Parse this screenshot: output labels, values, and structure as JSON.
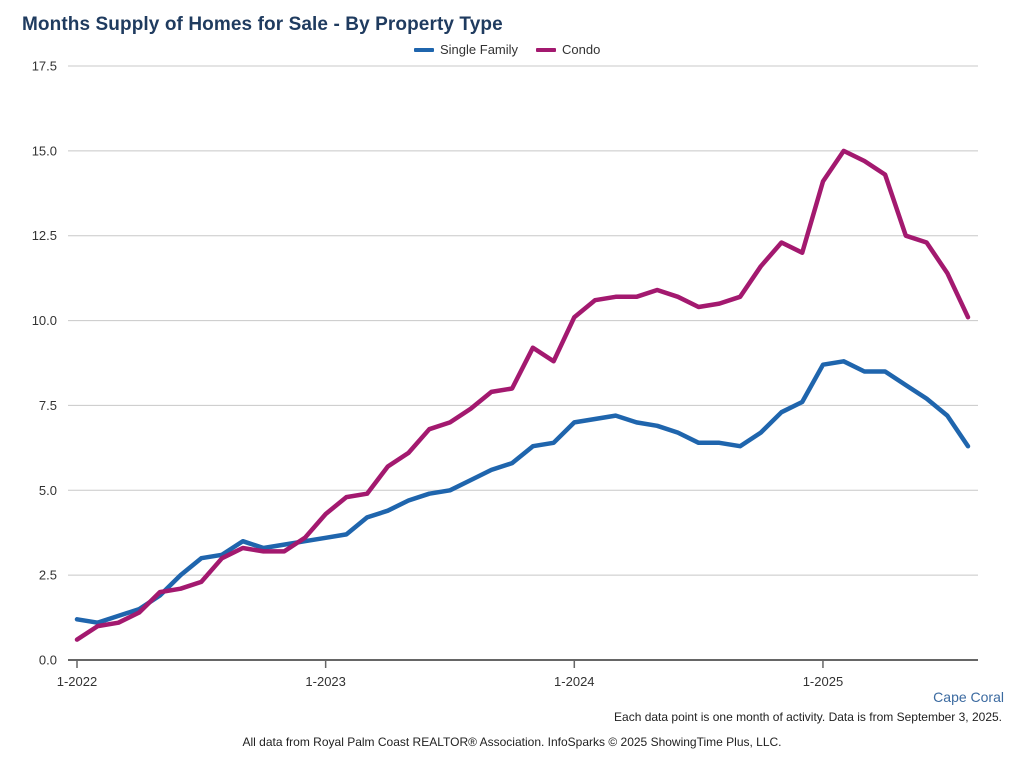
{
  "chart_data": {
    "type": "line",
    "title": "Months Supply of Homes for Sale - By Property Type",
    "xlabel": "",
    "ylabel": "",
    "ylim": [
      0,
      17.5
    ],
    "yticks": [
      "0.0",
      "2.5",
      "5.0",
      "7.5",
      "10.0",
      "12.5",
      "15.0",
      "17.5"
    ],
    "xticks": [
      {
        "label": "1-2022",
        "index": 0
      },
      {
        "label": "1-2023",
        "index": 12
      },
      {
        "label": "1-2024",
        "index": 24
      },
      {
        "label": "1-2025",
        "index": 36
      }
    ],
    "n_points": 44,
    "legend": "top-center",
    "grid": true,
    "series": [
      {
        "name": "Single Family",
        "color": "#1f65ad",
        "values": [
          1.2,
          1.1,
          1.3,
          1.5,
          1.9,
          2.5,
          3.0,
          3.1,
          3.5,
          3.3,
          3.4,
          3.5,
          3.6,
          3.7,
          4.2,
          4.4,
          4.7,
          4.9,
          5.0,
          5.3,
          5.6,
          5.8,
          6.3,
          6.4,
          7.0,
          7.1,
          7.2,
          7.0,
          6.9,
          6.7,
          6.4,
          6.4,
          6.3,
          6.7,
          7.3,
          7.6,
          8.7,
          8.8,
          8.5,
          8.5,
          8.1,
          7.7,
          7.2,
          6.3
        ]
      },
      {
        "name": "Condo",
        "color": "#a3196f",
        "values": [
          0.6,
          1.0,
          1.1,
          1.4,
          2.0,
          2.1,
          2.3,
          3.0,
          3.3,
          3.2,
          3.2,
          3.6,
          4.3,
          4.8,
          4.9,
          5.7,
          6.1,
          6.8,
          7.0,
          7.4,
          7.9,
          8.0,
          9.2,
          8.8,
          10.1,
          10.6,
          10.7,
          10.7,
          10.9,
          10.7,
          10.4,
          10.5,
          10.7,
          11.6,
          12.3,
          12.0,
          14.1,
          15.0,
          14.7,
          14.3,
          12.5,
          12.3,
          11.4,
          10.1
        ]
      }
    ]
  },
  "region_label": "Cape Coral",
  "note": "Each data point is one month of activity. Data is from September 3, 2025.",
  "source": "All data from Royal Palm Coast REALTOR® Association. InfoSparks © 2025 ShowingTime Plus, LLC."
}
